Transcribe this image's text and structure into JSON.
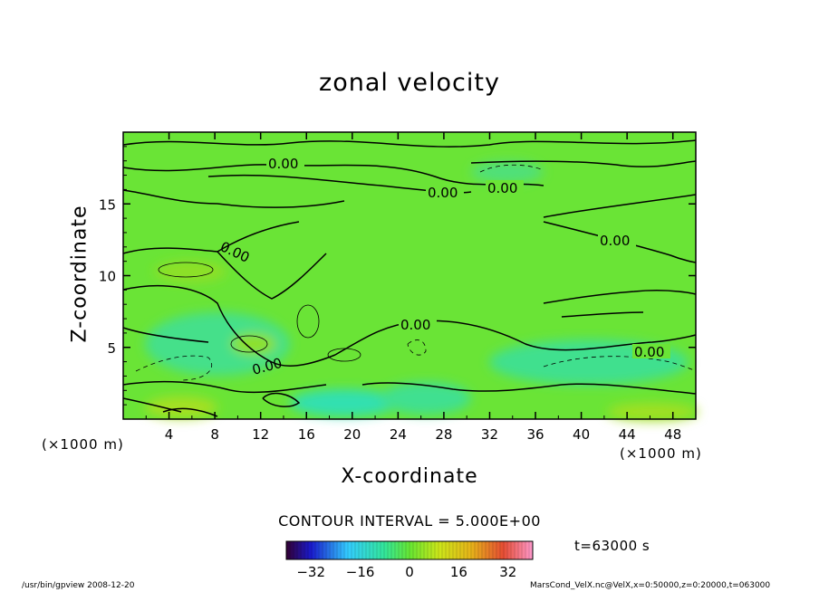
{
  "chart_data": {
    "type": "heatmap",
    "title": "zonal velocity",
    "xlabel": "X-coordinate",
    "ylabel": "Z-coordinate",
    "x_unit_left": "(×1000 m)",
    "x_unit_right": "(×1000 m)",
    "xlim": [
      0,
      50
    ],
    "ylim": [
      0,
      20
    ],
    "x_ticks": [
      4,
      8,
      12,
      16,
      20,
      24,
      28,
      32,
      36,
      40,
      44,
      48
    ],
    "y_ticks": [
      5,
      10,
      15
    ],
    "contour_labels": [
      "0.00",
      "0.00",
      "0.00",
      "0.00",
      "0.00",
      "0.00",
      "0.00",
      "0.00"
    ],
    "contour_interval": "CONTOUR INTERVAL = 5.000E+00",
    "time": "t=63000 s",
    "colorbar": {
      "ticks": [
        "−32",
        "−16",
        "0",
        "16",
        "32"
      ],
      "range": [
        -40,
        40
      ]
    },
    "colors": {
      "field_base": "#66e633",
      "negative": "#33e699",
      "positive": "#b3e619"
    }
  },
  "footer": {
    "left": "/usr/bin/gpview  2008-12-20",
    "right": "MarsCond_VelX.nc@VelX,x=0:50000,z=0:20000,t=063000"
  }
}
